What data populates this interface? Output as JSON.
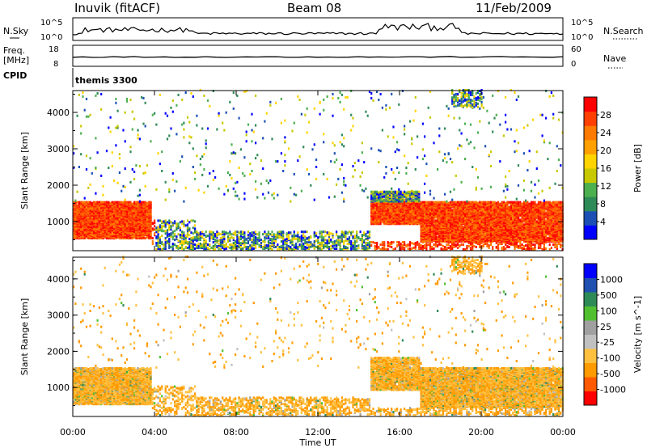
{
  "header": {
    "station": "Inuvik (fitACF)",
    "beam": "Beam 08",
    "date": "11/Feb/2009"
  },
  "noise_panel": {
    "left_label": "N.Sky",
    "right_label": "N.Search",
    "left_ticks": [
      "10^5",
      "10^0"
    ],
    "right_ticks": [
      "10^5",
      "10^0"
    ]
  },
  "freq_panel": {
    "left_label_1": "Freq.",
    "left_label_2": "[MHz]",
    "left_ticks": [
      "18",
      "8"
    ],
    "right_label": "Nave",
    "right_ticks": [
      "60",
      "0"
    ]
  },
  "cpid": {
    "label": "CPID",
    "value": "themis 3300"
  },
  "colors": {
    "power_scale": [
      "#0000ff",
      "#1b4fb4",
      "#2e8b57",
      "#4caf50",
      "#c8c800",
      "#ffd400",
      "#ffa000",
      "#ff7a00",
      "#ff4000",
      "#ff0000"
    ],
    "velocity_scale": [
      "#ff0000",
      "#ff5a00",
      "#ff9a00",
      "#ffc040",
      "#c0c0c0",
      "#a0a0a0",
      "#50c030",
      "#2e8b57",
      "#2050b0",
      "#0000ff"
    ]
  },
  "chart_data": [
    {
      "type": "heatmap",
      "name": "Power",
      "ylabel": "Slant Range [km]",
      "xlabel": "Time UT",
      "x_ticks": [
        "00:00",
        "04:00",
        "08:00",
        "12:00",
        "16:00",
        "20:00",
        "00:00"
      ],
      "y_ticks": [
        "1000",
        "2000",
        "3000",
        "4000"
      ],
      "ylim": [
        200,
        4600
      ],
      "colorbar_label": "Power [dB]",
      "colorbar_ticks": [
        "28",
        "24",
        "20",
        "16",
        "12",
        "8",
        "4"
      ],
      "zlim": [
        0,
        30
      ]
    },
    {
      "type": "heatmap",
      "name": "Velocity",
      "ylabel": "Slant Range [km]",
      "xlabel": "Time UT",
      "x_ticks": [
        "00:00",
        "04:00",
        "08:00",
        "12:00",
        "16:00",
        "20:00",
        "00:00"
      ],
      "y_ticks": [
        "1000",
        "2000",
        "3000",
        "4000"
      ],
      "ylim": [
        200,
        4600
      ],
      "colorbar_label": "Velocity [m s^-1]",
      "colorbar_ticks": [
        "1000",
        "500",
        "100",
        "25",
        "-25",
        "-100",
        "-500",
        "-1000"
      ],
      "zlim": [
        -1000,
        1000
      ]
    }
  ]
}
